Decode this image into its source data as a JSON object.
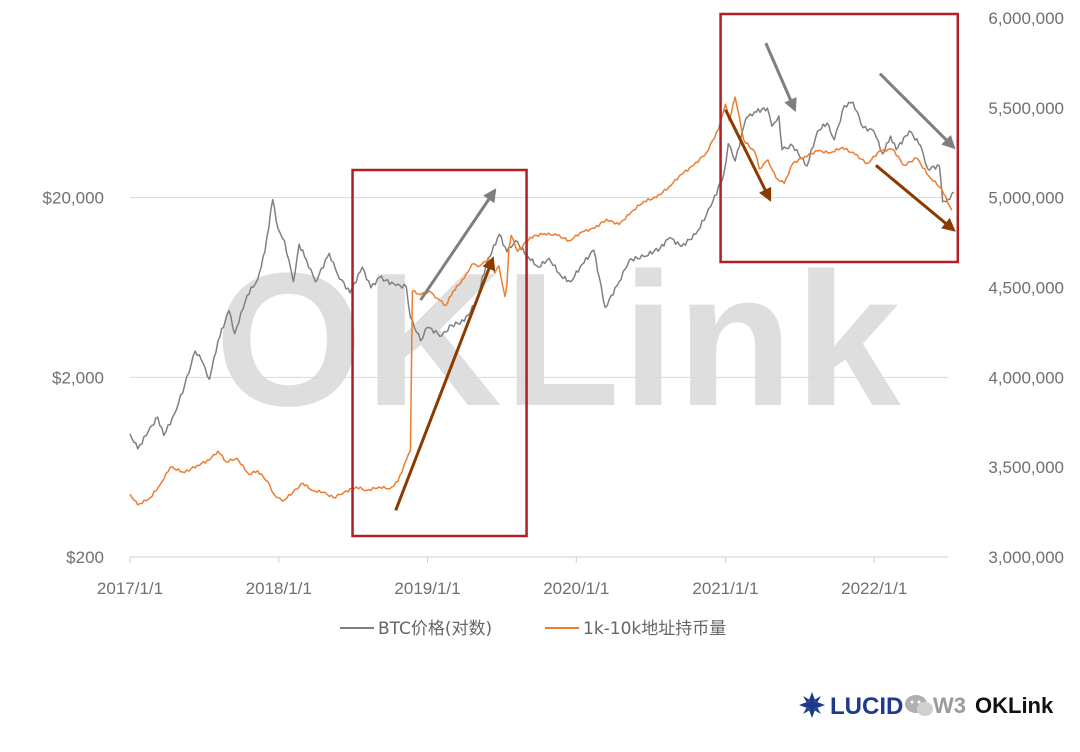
{
  "chart_data": {
    "type": "line",
    "title": "",
    "x_range": [
      "2017/1/1",
      "2022/7/1"
    ],
    "x_tick_labels": [
      "2017/1/1",
      "2018/1/1",
      "2019/1/1",
      "2020/1/1",
      "2021/1/1",
      "2022/1/1"
    ],
    "y_left": {
      "scale": "log",
      "range": [
        200,
        200000
      ],
      "tick_labels": [
        "$200",
        "$2,000",
        "$20,000"
      ],
      "tick_values": [
        200,
        2000,
        20000
      ]
    },
    "y_right": {
      "scale": "linear",
      "range": [
        3000000,
        6000000
      ],
      "tick_labels": [
        "3,000,000",
        "3,500,000",
        "4,000,000",
        "4,500,000",
        "5,000,000",
        "5,500,000",
        "6,000,000"
      ],
      "tick_values": [
        3000000,
        3500000,
        4000000,
        4500000,
        5000000,
        5500000,
        6000000
      ]
    },
    "grid": true,
    "legend_position": "bottom",
    "series": [
      {
        "name": "BTC价格(对数)",
        "axis": "left",
        "color": "#808080",
        "points": [
          [
            "2017/1/1",
            970
          ],
          [
            "2017/1/20",
            800
          ],
          [
            "2017/2/15",
            1000
          ],
          [
            "2017/3/10",
            1200
          ],
          [
            "2017/3/25",
            950
          ],
          [
            "2017/4/20",
            1250
          ],
          [
            "2017/5/15",
            1800
          ],
          [
            "2017/6/10",
            2800
          ],
          [
            "2017/6/25",
            2500
          ],
          [
            "2017/7/15",
            1950
          ],
          [
            "2017/8/5",
            3200
          ],
          [
            "2017/9/1",
            4700
          ],
          [
            "2017/9/15",
            3500
          ],
          [
            "2017/10/15",
            5700
          ],
          [
            "2017/11/10",
            7000
          ],
          [
            "2017/11/28",
            10000
          ],
          [
            "2017/12/17",
            19500
          ],
          [
            "2017/12/30",
            13500
          ],
          [
            "2018/1/15",
            11500
          ],
          [
            "2018/2/6",
            6800
          ],
          [
            "2018/2/20",
            11000
          ],
          [
            "2018/3/10",
            9000
          ],
          [
            "2018/4/1",
            6800
          ],
          [
            "2018/5/5",
            9800
          ],
          [
            "2018/5/25",
            7500
          ],
          [
            "2018/6/25",
            5900
          ],
          [
            "2018/7/25",
            8200
          ],
          [
            "2018/8/15",
            6300
          ],
          [
            "2018/9/5",
            7200
          ],
          [
            "2018/10/15",
            6500
          ],
          [
            "2018/11/10",
            6400
          ],
          [
            "2018/11/20",
            4300
          ],
          [
            "2018/12/15",
            3200
          ],
          [
            "2019/1/1",
            3800
          ],
          [
            "2019/2/5",
            3400
          ],
          [
            "2019/3/1",
            3900
          ],
          [
            "2019/4/1",
            4100
          ],
          [
            "2019/5/1",
            5300
          ],
          [
            "2019/5/25",
            8500
          ],
          [
            "2019/6/26",
            12500
          ],
          [
            "2019/7/15",
            10000
          ],
          [
            "2019/8/5",
            11500
          ],
          [
            "2019/9/1",
            9600
          ],
          [
            "2019/9/30",
            8200
          ],
          [
            "2019/10/26",
            9200
          ],
          [
            "2019/11/25",
            7300
          ],
          [
            "2019/12/18",
            6800
          ],
          [
            "2020/1/15",
            8500
          ],
          [
            "2020/2/13",
            10200
          ],
          [
            "2020/3/12",
            4900
          ],
          [
            "2020/4/15",
            6800
          ],
          [
            "2020/5/10",
            9000
          ],
          [
            "2020/6/15",
            9400
          ],
          [
            "2020/7/25",
            10500
          ],
          [
            "2020/8/17",
            12000
          ],
          [
            "2020/9/15",
            10700
          ],
          [
            "2020/10/20",
            12500
          ],
          [
            "2020/11/15",
            16000
          ],
          [
            "2020/12/1",
            19000
          ],
          [
            "2020/12/28",
            27000
          ],
          [
            "2021/1/8",
            40000
          ],
          [
            "2021/1/25",
            32000
          ],
          [
            "2021/2/20",
            55000
          ],
          [
            "2021/3/13",
            60000
          ],
          [
            "2021/4/14",
            63000
          ],
          [
            "2021/4/25",
            50000
          ],
          [
            "2021/5/12",
            57000
          ],
          [
            "2021/5/20",
            37000
          ],
          [
            "2021/6/15",
            39000
          ],
          [
            "2021/7/20",
            30000
          ],
          [
            "2021/8/15",
            47000
          ],
          [
            "2021/9/7",
            52000
          ],
          [
            "2021/9/25",
            42000
          ],
          [
            "2021/10/20",
            65000
          ],
          [
            "2021/11/10",
            68000
          ],
          [
            "2021/12/5",
            49000
          ],
          [
            "2021/12/31",
            47000
          ],
          [
            "2022/1/22",
            35000
          ],
          [
            "2022/2/10",
            44000
          ],
          [
            "2022/2/24",
            37000
          ],
          [
            "2022/3/28",
            47000
          ],
          [
            "2022/4/25",
            39000
          ],
          [
            "2022/5/12",
            29000
          ],
          [
            "2022/6/10",
            30000
          ],
          [
            "2022/6/18",
            19000
          ],
          [
            "2022/7/1",
            19500
          ],
          [
            "2022/7/15",
            21500
          ]
        ]
      },
      {
        "name": "1k-10k地址持币量",
        "axis": "right",
        "color": "#ed7d31",
        "points": [
          [
            "2017/1/1",
            3350000
          ],
          [
            "2017/1/20",
            3290000
          ],
          [
            "2017/2/20",
            3330000
          ],
          [
            "2017/3/15",
            3400000
          ],
          [
            "2017/4/10",
            3500000
          ],
          [
            "2017/5/15",
            3470000
          ],
          [
            "2017/6/15",
            3510000
          ],
          [
            "2017/7/15",
            3540000
          ],
          [
            "2017/8/5",
            3590000
          ],
          [
            "2017/8/25",
            3530000
          ],
          [
            "2017/9/20",
            3550000
          ],
          [
            "2017/10/20",
            3460000
          ],
          [
            "2017/11/10",
            3480000
          ],
          [
            "2017/12/5",
            3420000
          ],
          [
            "2017/12/20",
            3350000
          ],
          [
            "2018/1/10",
            3310000
          ],
          [
            "2018/2/5",
            3360000
          ],
          [
            "2018/3/1",
            3410000
          ],
          [
            "2018/3/25",
            3370000
          ],
          [
            "2018/4/20",
            3360000
          ],
          [
            "2018/5/15",
            3330000
          ],
          [
            "2018/6/10",
            3360000
          ],
          [
            "2018/7/10",
            3390000
          ],
          [
            "2018/8/5",
            3370000
          ],
          [
            "2018/9/5",
            3390000
          ],
          [
            "2018/10/1",
            3380000
          ],
          [
            "2018/10/20",
            3420000
          ],
          [
            "2018/11/10",
            3540000
          ],
          [
            "2018/11/20",
            3590000
          ],
          [
            "2018/11/25",
            4480000
          ],
          [
            "2018/12/15",
            4460000
          ],
          [
            "2019/1/5",
            4480000
          ],
          [
            "2019/1/25",
            4440000
          ],
          [
            "2019/2/15",
            4400000
          ],
          [
            "2019/3/5",
            4480000
          ],
          [
            "2019/4/1",
            4550000
          ],
          [
            "2019/4/20",
            4630000
          ],
          [
            "2019/5/10",
            4620000
          ],
          [
            "2019/5/30",
            4660000
          ],
          [
            "2019/6/15",
            4580000
          ],
          [
            "2019/6/25",
            4620000
          ],
          [
            "2019/7/10",
            4450000
          ],
          [
            "2019/7/15",
            4520000
          ],
          [
            "2019/7/20",
            4720000
          ],
          [
            "2019/7/25",
            4790000
          ],
          [
            "2019/8/10",
            4700000
          ],
          [
            "2019/9/10",
            4780000
          ],
          [
            "2019/10/15",
            4800000
          ],
          [
            "2019/11/15",
            4790000
          ],
          [
            "2019/12/15",
            4760000
          ],
          [
            "2020/1/15",
            4810000
          ],
          [
            "2020/2/15",
            4830000
          ],
          [
            "2020/3/15",
            4880000
          ],
          [
            "2020/4/15",
            4850000
          ],
          [
            "2020/5/15",
            4920000
          ],
          [
            "2020/6/15",
            4980000
          ],
          [
            "2020/7/15",
            5000000
          ],
          [
            "2020/8/15",
            5060000
          ],
          [
            "2020/9/15",
            5130000
          ],
          [
            "2020/10/15",
            5180000
          ],
          [
            "2020/11/15",
            5250000
          ],
          [
            "2020/12/15",
            5380000
          ],
          [
            "2021/1/1",
            5520000
          ],
          [
            "2021/1/10",
            5430000
          ],
          [
            "2021/1/25",
            5560000
          ],
          [
            "2021/2/15",
            5320000
          ],
          [
            "2021/3/15",
            5250000
          ],
          [
            "2021/3/25",
            5160000
          ],
          [
            "2021/4/15",
            5210000
          ],
          [
            "2021/5/5",
            5110000
          ],
          [
            "2021/5/25",
            5080000
          ],
          [
            "2021/6/15",
            5190000
          ],
          [
            "2021/7/15",
            5230000
          ],
          [
            "2021/8/15",
            5260000
          ],
          [
            "2021/9/15",
            5250000
          ],
          [
            "2021/10/15",
            5280000
          ],
          [
            "2021/11/15",
            5240000
          ],
          [
            "2021/12/15",
            5190000
          ],
          [
            "2022/1/15",
            5260000
          ],
          [
            "2022/2/15",
            5270000
          ],
          [
            "2022/3/15",
            5180000
          ],
          [
            "2022/4/15",
            5220000
          ],
          [
            "2022/5/15",
            5120000
          ],
          [
            "2022/6/15",
            5050000
          ],
          [
            "2022/7/10",
            4930000
          ]
        ]
      }
    ],
    "annotations": {
      "boxes": [
        {
          "from": "2018/7/1",
          "to": "2019/9/1",
          "color": "#b11f24"
        },
        {
          "from": "2020/12/20",
          "to": "2022/7/25",
          "color": "#b11f24"
        }
      ],
      "arrows": [
        {
          "color": "#7f7f7f",
          "from": [
            "2018/12/15",
            4430000
          ],
          "to": [
            "2019/6/15",
            5040000
          ]
        },
        {
          "color": "#8b3a00",
          "from": [
            "2018/10/15",
            3260000
          ],
          "to": [
            "2019/6/10",
            4660000
          ]
        },
        {
          "color": "#7f7f7f",
          "from": [
            "2021/4/10",
            5860000
          ],
          "to": [
            "2021/6/20",
            5490000
          ]
        },
        {
          "color": "#8b3a00",
          "from": [
            "2021/1/1",
            5490000
          ],
          "to": [
            "2021/4/20",
            4990000
          ]
        },
        {
          "color": "#7f7f7f",
          "from": [
            "2022/1/15",
            5690000
          ],
          "to": [
            "2022/7/15",
            5280000
          ]
        },
        {
          "color": "#8b3a00",
          "from": [
            "2022/1/5",
            5180000
          ],
          "to": [
            "2022/7/15",
            4820000
          ]
        }
      ]
    }
  },
  "watermark": "OKLink",
  "footer": {
    "logo_text": "LUCID",
    "wechat_text": "W3",
    "brand_text": "OKLink"
  }
}
